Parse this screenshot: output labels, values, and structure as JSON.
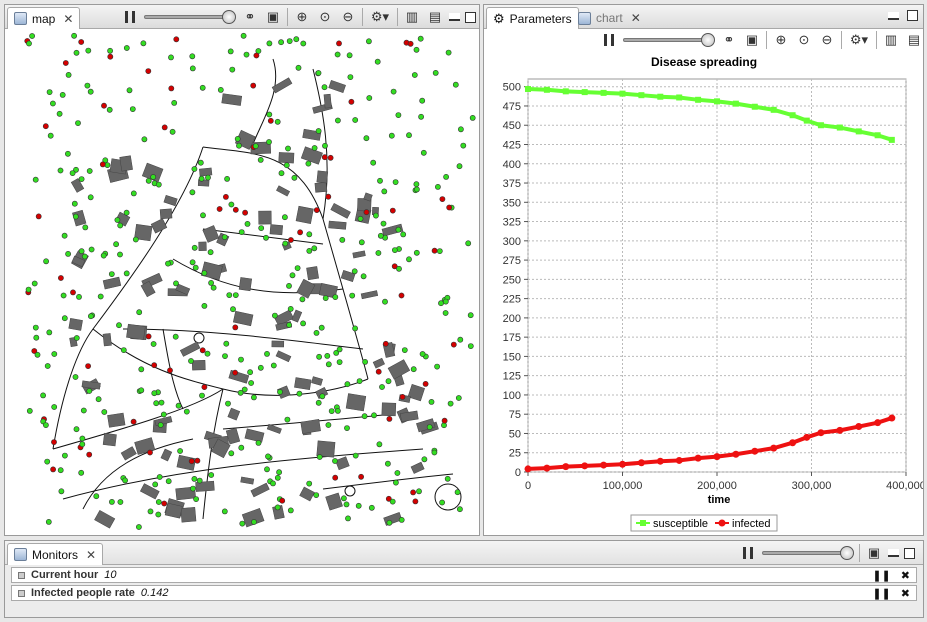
{
  "map_view": {
    "tab_label": "map",
    "toolbar_icons": [
      "pause-icon",
      "speed-slider",
      "sync-icon",
      "snapshot-icon",
      "zoom-in-icon",
      "zoom-fit-icon",
      "zoom-out-icon",
      "options-icon",
      "layout-side-icon",
      "layout-bottom-icon"
    ]
  },
  "right_view": {
    "tabs": [
      {
        "label": "Parameters",
        "active": true
      },
      {
        "label": "chart",
        "active": false
      }
    ]
  },
  "chart_data": {
    "type": "line",
    "title": "Disease spreading",
    "xlabel": "time",
    "ylabel": "",
    "xlim": [
      0,
      400000
    ],
    "ylim": [
      0,
      510
    ],
    "x_ticks": [
      "0",
      "100,000",
      "200,000",
      "300,000",
      "400,000"
    ],
    "x_tick_values": [
      0,
      100000,
      200000,
      300000,
      400000
    ],
    "y_ticks": [
      "0",
      "25",
      "50",
      "75",
      "100",
      "125",
      "150",
      "175",
      "200",
      "225",
      "250",
      "275",
      "300",
      "325",
      "350",
      "375",
      "400",
      "425",
      "450",
      "475",
      "500"
    ],
    "grid": true,
    "legend_position": "bottom",
    "series": [
      {
        "name": "susceptible",
        "color": "#66ff33",
        "marker": "square",
        "x": [
          0,
          20000,
          40000,
          60000,
          80000,
          100000,
          120000,
          140000,
          160000,
          180000,
          200000,
          220000,
          240000,
          260000,
          280000,
          295000,
          310000,
          330000,
          350000,
          370000,
          385000
        ],
        "y": [
          497,
          496,
          494,
          493,
          492,
          491,
          489,
          487,
          486,
          483,
          481,
          478,
          474,
          470,
          463,
          456,
          450,
          447,
          442,
          437,
          431
        ]
      },
      {
        "name": "infected",
        "color": "#ee1111",
        "marker": "circle",
        "x": [
          0,
          20000,
          40000,
          60000,
          80000,
          100000,
          120000,
          140000,
          160000,
          180000,
          200000,
          220000,
          240000,
          260000,
          280000,
          295000,
          310000,
          330000,
          350000,
          370000,
          385000
        ],
        "y": [
          4,
          5,
          7,
          8,
          9,
          10,
          12,
          14,
          15,
          18,
          20,
          23,
          27,
          31,
          38,
          45,
          51,
          54,
          59,
          64,
          70
        ]
      }
    ]
  },
  "monitors": {
    "tab_label": "Monitors",
    "items": [
      {
        "label": "Current hour",
        "value": "10"
      },
      {
        "label": "Infected people rate",
        "value": "0.142"
      }
    ]
  }
}
